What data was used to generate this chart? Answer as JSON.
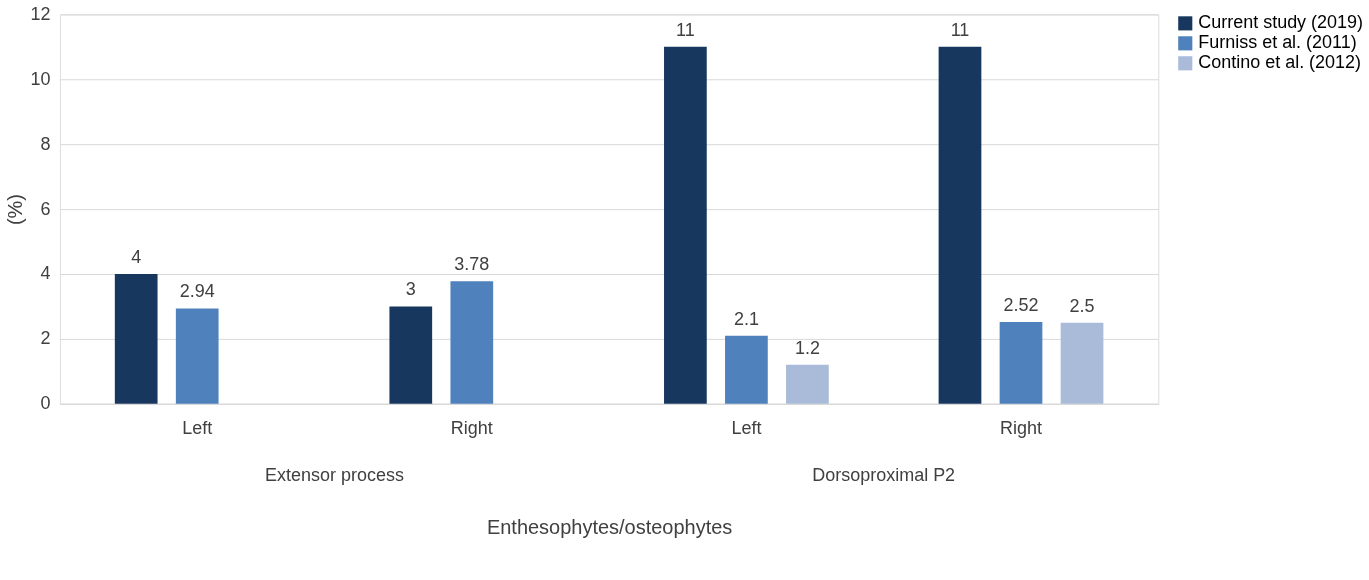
{
  "chart_data": {
    "type": "bar",
    "ylabel": "(%)",
    "xlabel": "Enthesophytes/osteophytes",
    "categories": [
      "Left",
      "Right",
      "Left",
      "Right"
    ],
    "series": [
      {
        "name": "Current study (2019)",
        "color": "#17375e",
        "values": [
          4,
          3,
          11,
          11
        ]
      },
      {
        "name": "Furniss et al. (2011)",
        "color": "#4f81bd",
        "values": [
          2.94,
          3.78,
          2.1,
          2.52
        ]
      },
      {
        "name": "Contino et al. (2012)",
        "color": "#a9bbd9",
        "values": [
          null,
          null,
          1.2,
          2.5
        ]
      }
    ],
    "annotations": [
      "Extensor process",
      "Dorsoproximal P2"
    ],
    "ylim": [
      0,
      12
    ],
    "yticks": [
      0,
      2,
      4,
      6,
      8,
      10,
      12
    ],
    "grid": "y",
    "legend": "right",
    "data_labels": true
  }
}
